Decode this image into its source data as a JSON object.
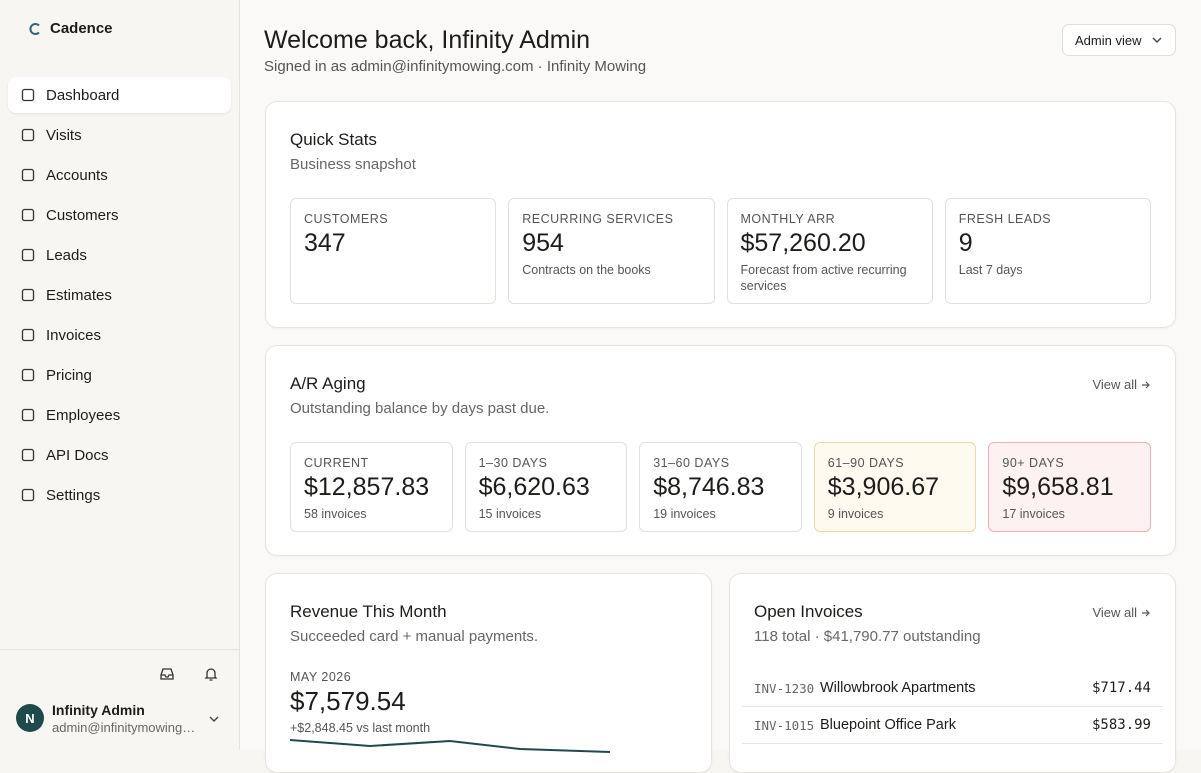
{
  "sidebar": {
    "brand": "Cadence",
    "nav": [
      "Dashboard",
      "Visits",
      "Accounts",
      "Customers",
      "Leads",
      "Estimates",
      "Invoices",
      "Pricing",
      "Employees",
      "API Docs",
      "Settings"
    ],
    "user": {
      "avatar": "N",
      "name": "Infinity Admin",
      "email": "admin@infinitymowing.com"
    }
  },
  "header": {
    "title": "Welcome back, Infinity Admin",
    "subtitle": "Signed in as admin@infinitymowing.com · Infinity Mowing",
    "view_button": "Admin view"
  },
  "quick_stats": {
    "title": "Quick Stats",
    "subtitle": "Business snapshot",
    "cards": [
      {
        "label": "CUSTOMERS",
        "value": 347
      },
      {
        "label": "RECURRING SERVICES",
        "value": 954,
        "note": "Contracts on the books"
      },
      {
        "label": "MONTHLY ARR",
        "value": "$57,260.20",
        "note": "Forecast from active recurring services"
      },
      {
        "label": "FRESH LEADS",
        "value": 9,
        "note": "Last 7 days"
      }
    ]
  },
  "ar_aging": {
    "title": "A/R Aging",
    "subtitle": "Outstanding balance by days past due.",
    "link": "View all",
    "buckets": [
      {
        "label": "CURRENT",
        "value": "$12,857.83",
        "note": "58 invoices"
      },
      {
        "label": "1–30 DAYS",
        "value": "$6,620.63",
        "note": "15 invoices"
      },
      {
        "label": "31–60 DAYS",
        "value": "$8,746.83",
        "note": "19 invoices"
      },
      {
        "label": "61–90 DAYS",
        "value": "$3,906.67",
        "note": "9 invoices"
      },
      {
        "label": "90+ DAYS",
        "value": "$9,658.81",
        "note": "17 invoices"
      }
    ]
  },
  "revenue": {
    "title": "Revenue This Month",
    "subtitle": "Succeeded card + manual payments.",
    "period": "MAY 2026",
    "amount": "$7,579.54",
    "change": "+$2,848.45 vs last month"
  },
  "open_invoices": {
    "title": "Open Invoices",
    "subtitle": "118 total · $41,790.77 outstanding",
    "link": "View all",
    "rows": [
      {
        "id": "INV-1230",
        "name": "Willowbrook Apartments",
        "amount": "$717.44"
      },
      {
        "id": "INV-1015",
        "name": "Bluepoint Office Park",
        "amount": "$583.99"
      }
    ]
  }
}
